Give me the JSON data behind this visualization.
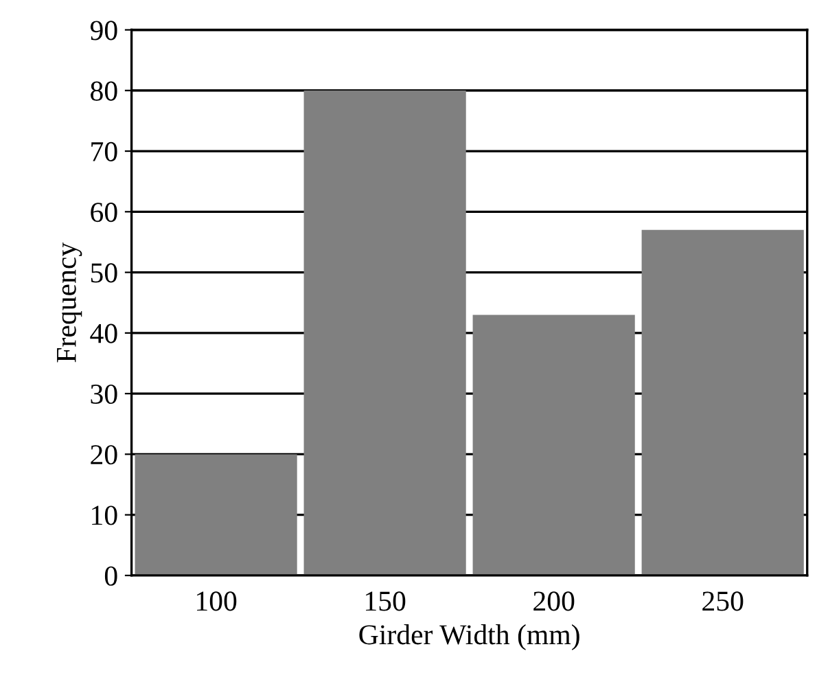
{
  "chart_data": {
    "type": "bar",
    "xlabel": "Girder Width (mm)",
    "ylabel": "Frequency",
    "categories": [
      "100",
      "150",
      "200",
      "250"
    ],
    "values": [
      20,
      80,
      43,
      57
    ],
    "color": "#808080",
    "ylim": [
      0,
      90
    ],
    "yticks": [
      0,
      10,
      20,
      30,
      40,
      50,
      60,
      70,
      80,
      90
    ],
    "grid": "y",
    "legend": false
  }
}
